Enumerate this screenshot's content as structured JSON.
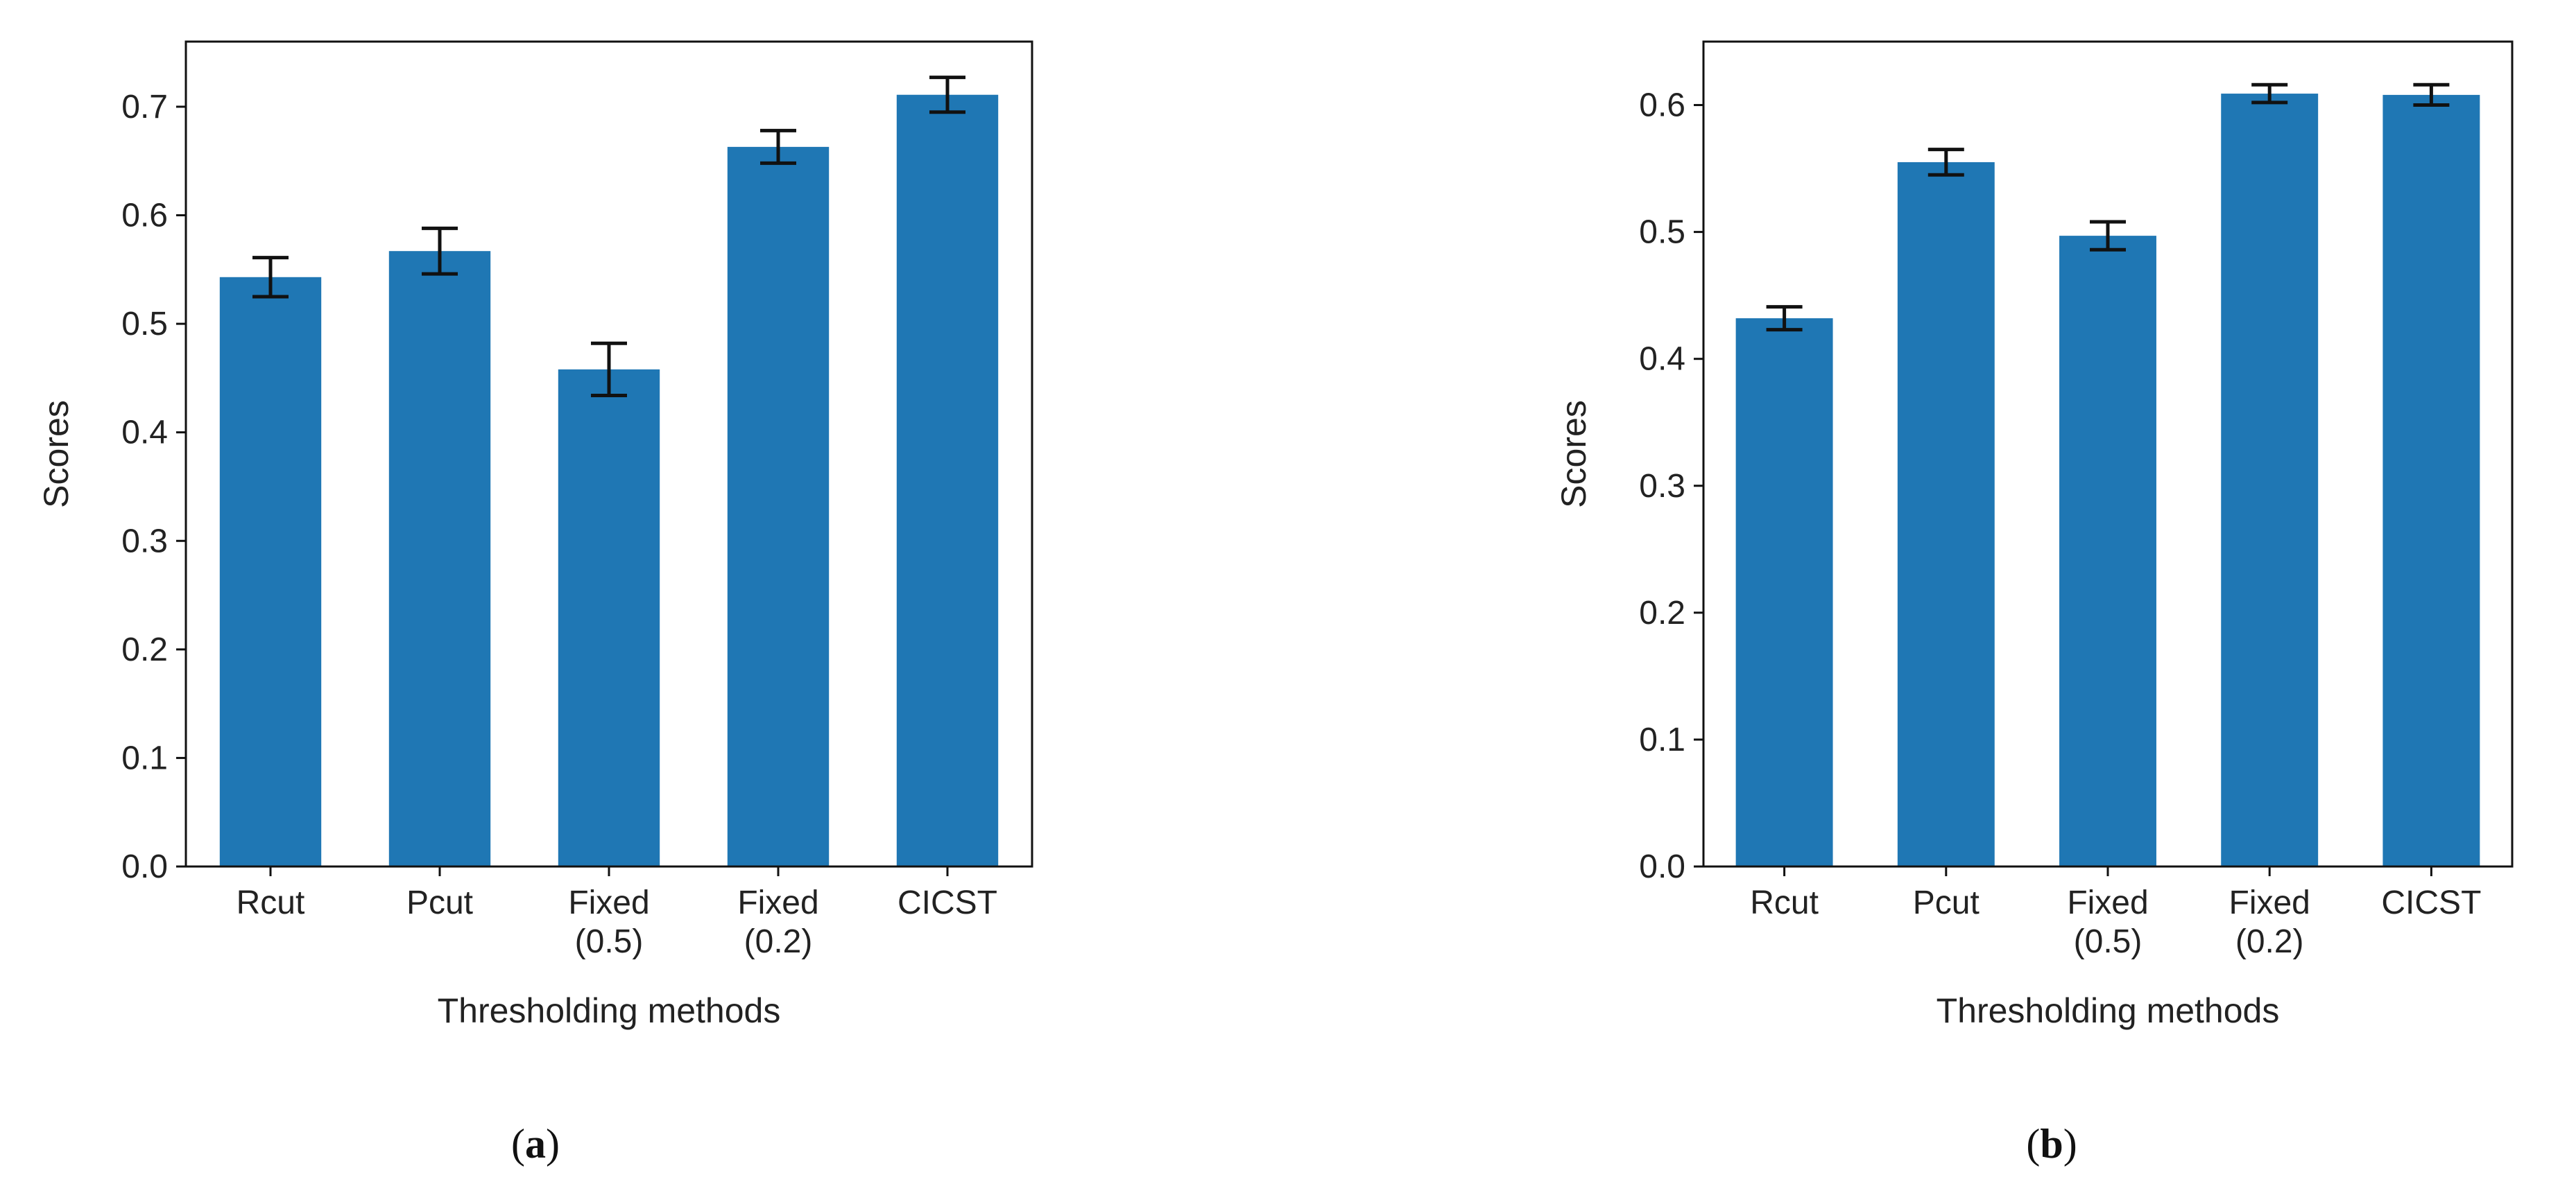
{
  "chart_data": [
    {
      "type": "bar",
      "panel_label": {
        "open": "(",
        "letter": "a",
        "close": ")"
      },
      "title": "",
      "xlabel": "Thresholding methods",
      "ylabel": "Scores",
      "categories": [
        [
          "Rcut"
        ],
        [
          "Pcut"
        ],
        [
          "Fixed",
          "(0.5)"
        ],
        [
          "Fixed",
          "(0.2)"
        ],
        [
          "CICST"
        ]
      ],
      "values": [
        0.543,
        0.567,
        0.458,
        0.663,
        0.711
      ],
      "errors": [
        0.018,
        0.021,
        0.024,
        0.015,
        0.016
      ],
      "ylim": [
        0,
        0.76
      ],
      "yticks": [
        "0.0",
        "0.1",
        "0.2",
        "0.3",
        "0.4",
        "0.5",
        "0.6",
        "0.7"
      ],
      "grid": false,
      "bar_color": "#1f77b4"
    },
    {
      "type": "bar",
      "panel_label": {
        "open": "(",
        "letter": "b",
        "close": ")"
      },
      "title": "",
      "xlabel": "Thresholding methods",
      "ylabel": "Scores",
      "categories": [
        [
          "Rcut"
        ],
        [
          "Pcut"
        ],
        [
          "Fixed",
          "(0.5)"
        ],
        [
          "Fixed",
          "(0.2)"
        ],
        [
          "CICST"
        ]
      ],
      "values": [
        0.432,
        0.555,
        0.497,
        0.609,
        0.608
      ],
      "errors": [
        0.009,
        0.01,
        0.011,
        0.007,
        0.008
      ],
      "ylim": [
        0,
        0.65
      ],
      "yticks": [
        "0.0",
        "0.1",
        "0.2",
        "0.3",
        "0.4",
        "0.5",
        "0.6"
      ],
      "grid": false,
      "bar_color": "#1f77b4"
    }
  ]
}
